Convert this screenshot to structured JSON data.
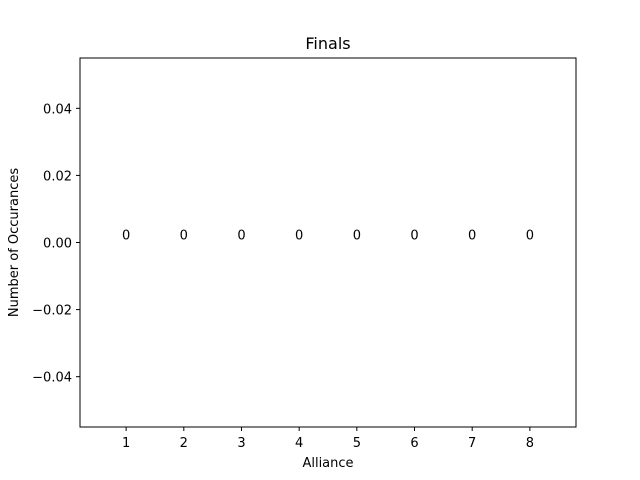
{
  "chart_data": {
    "type": "bar",
    "title": "Finals",
    "xlabel": "Alliance",
    "ylabel": "Number of Occurances",
    "categories": [
      "1",
      "2",
      "3",
      "4",
      "5",
      "6",
      "7",
      "8"
    ],
    "values": [
      0,
      0,
      0,
      0,
      0,
      0,
      0,
      0
    ],
    "data_labels": [
      "0",
      "0",
      "0",
      "0",
      "0",
      "0",
      "0",
      "0"
    ],
    "ylim": [
      -0.055,
      0.055
    ],
    "y_ticks": [
      -0.04,
      -0.02,
      0.0,
      0.02,
      0.04
    ],
    "y_tick_labels": [
      "−0.04",
      "−0.02",
      "0.00",
      "0.02",
      "0.04"
    ],
    "grid": false,
    "legend": "none",
    "colors": {
      "bar": "#1f77b4",
      "axes": "#000000",
      "background": "#ffffff"
    }
  }
}
